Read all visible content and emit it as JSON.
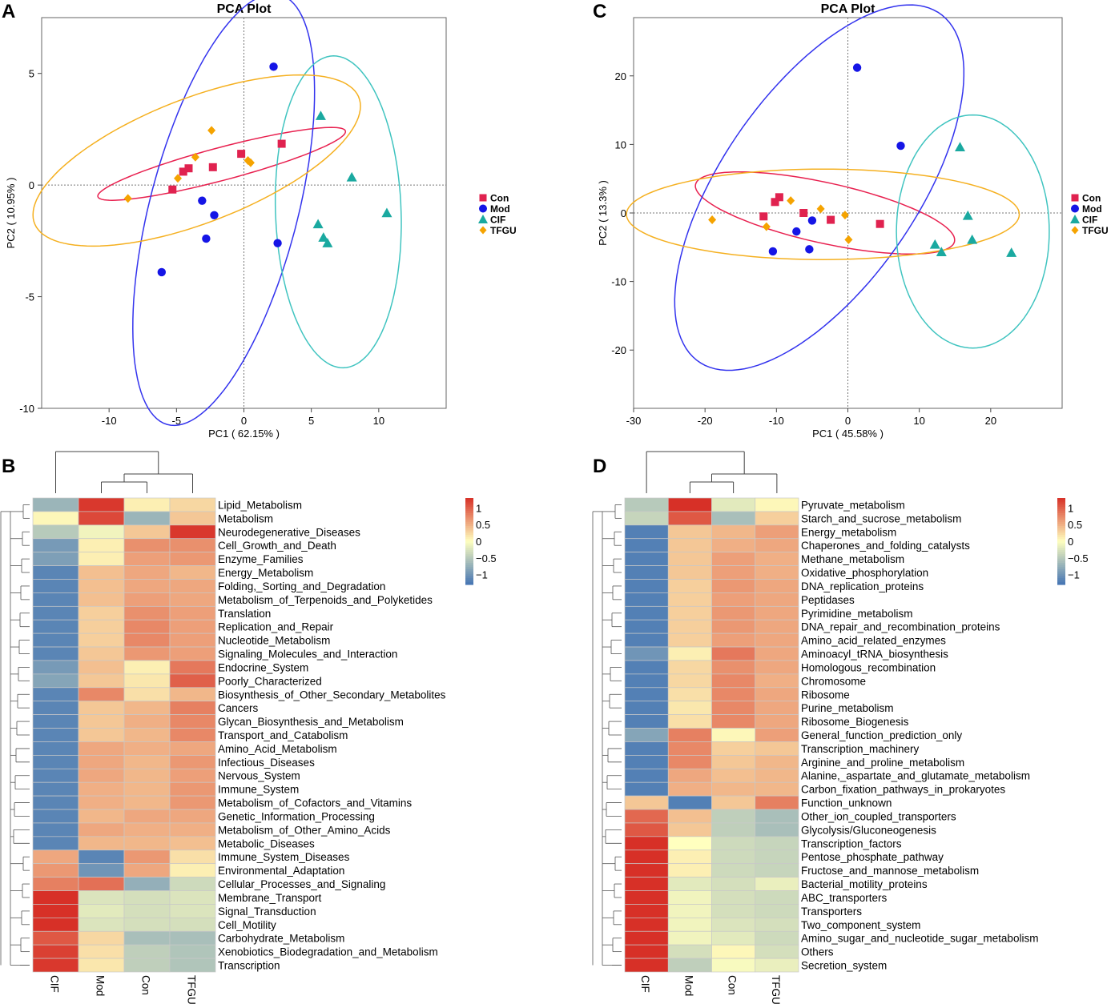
{
  "colors": {
    "Con": "#e0224f",
    "Mod": "#1515e6",
    "CIF": "#1aa9a0",
    "TFGU": "#f5a300",
    "ellipse_Con": "#e8204f",
    "ellipse_Mod": "#3333ee",
    "ellipse_CIF": "#40c4c0",
    "ellipse_TFGU": "#f5b020",
    "heat_low": "#4575b4",
    "heat_mid": "#ffffbf",
    "heat_high": "#d73027"
  },
  "legend_groups": [
    "Con",
    "Mod",
    "CIF",
    "TFGU"
  ],
  "chart_data": [
    {
      "panel": "A",
      "type": "scatter",
      "title": "PCA Plot",
      "xlabel": "PC1 ( 62.15% )",
      "ylabel": "PC2 ( 10.95% )",
      "xlim": [
        -15,
        15
      ],
      "ylim": [
        -10,
        7.5
      ],
      "xticks": [
        -10,
        -5,
        0,
        5,
        10
      ],
      "yticks": [
        -10,
        -5,
        0,
        5
      ],
      "legend_position": "right",
      "series": [
        {
          "name": "Con",
          "marker": "square",
          "points": [
            [
              -5.3,
              -0.2
            ],
            [
              -4.5,
              0.6
            ],
            [
              -4.1,
              0.75
            ],
            [
              -2.3,
              0.8
            ],
            [
              -0.2,
              1.4
            ],
            [
              2.8,
              1.85
            ]
          ]
        },
        {
          "name": "Mod",
          "marker": "circle",
          "points": [
            [
              2.2,
              5.3
            ],
            [
              -3.1,
              -0.7
            ],
            [
              -2.2,
              -1.35
            ],
            [
              -2.8,
              -2.4
            ],
            [
              2.5,
              -2.6
            ],
            [
              -6.1,
              -3.9
            ]
          ]
        },
        {
          "name": "CIF",
          "marker": "triangle",
          "points": [
            [
              5.7,
              3.1
            ],
            [
              8.0,
              0.35
            ],
            [
              10.6,
              -1.25
            ],
            [
              5.5,
              -1.75
            ],
            [
              5.9,
              -2.35
            ],
            [
              6.2,
              -2.6
            ]
          ]
        },
        {
          "name": "TFGU",
          "marker": "diamond",
          "points": [
            [
              -2.4,
              2.45
            ],
            [
              -3.6,
              1.25
            ],
            [
              -4.9,
              0.3
            ],
            [
              -8.6,
              -0.6
            ],
            [
              0.3,
              1.1
            ],
            [
              0.5,
              1.0
            ]
          ]
        }
      ],
      "ellipses": [
        {
          "group": "Con",
          "cx": -1.65,
          "cy": 0.95,
          "rx": 9.3,
          "ry": 0.75,
          "angle": 9.0
        },
        {
          "group": "Mod",
          "cx": -1.5,
          "cy": -1.1,
          "rx": 10.6,
          "ry": 5.15,
          "angle": 62.0
        },
        {
          "group": "CIF",
          "cx": 7.0,
          "cy": -1.2,
          "rx": 7.0,
          "ry": 4.65,
          "angle": 95.0
        },
        {
          "group": "TFGU",
          "cx": -3.5,
          "cy": 1.1,
          "rx": 12.4,
          "ry": 2.9,
          "angle": 12.0
        }
      ]
    },
    {
      "panel": "C",
      "type": "scatter",
      "title": "PCA Plot",
      "xlabel": "PC1 ( 45.58% )",
      "ylabel": "PC2 ( 13.3% )",
      "xlim": [
        -30,
        30
      ],
      "ylim": [
        -28.5,
        28.5
      ],
      "xticks": [
        -30,
        -20,
        -10,
        0,
        10,
        20
      ],
      "yticks": [
        -20,
        -10,
        0,
        10,
        20
      ],
      "legend_position": "right",
      "series": [
        {
          "name": "Con",
          "marker": "square",
          "points": [
            [
              -9.6,
              2.3
            ],
            [
              -10.2,
              1.6
            ],
            [
              -11.8,
              -0.5
            ],
            [
              -6.2,
              0.0
            ],
            [
              -2.4,
              -1.0
            ],
            [
              4.5,
              -1.6
            ]
          ]
        },
        {
          "name": "Mod",
          "marker": "circle",
          "points": [
            [
              1.3,
              21.2
            ],
            [
              7.4,
              9.8
            ],
            [
              -5.0,
              -1.1
            ],
            [
              -7.2,
              -2.7
            ],
            [
              -5.4,
              -5.3
            ],
            [
              -10.5,
              -5.6
            ]
          ]
        },
        {
          "name": "CIF",
          "marker": "triangle",
          "points": [
            [
              15.7,
              9.6
            ],
            [
              16.8,
              -0.4
            ],
            [
              22.9,
              -5.8
            ],
            [
              12.2,
              -4.6
            ],
            [
              13.1,
              -5.7
            ],
            [
              17.4,
              -3.9
            ]
          ]
        },
        {
          "name": "TFGU",
          "marker": "diamond",
          "points": [
            [
              -8.0,
              1.8
            ],
            [
              -3.8,
              0.6
            ],
            [
              -0.4,
              -0.3
            ],
            [
              -19.0,
              -1.0
            ],
            [
              -11.4,
              -2.0
            ],
            [
              0.1,
              -3.9
            ]
          ]
        }
      ],
      "ellipses": [
        {
          "group": "Con",
          "cx": -3.2,
          "cy": 0.0,
          "rx": 18.6,
          "ry": 4.4,
          "angle": -13.0
        },
        {
          "group": "Mod",
          "cx": -4.0,
          "cy": 3.7,
          "rx": 30.5,
          "ry": 13.8,
          "angle": 57.0
        },
        {
          "group": "CIF",
          "cx": 17.5,
          "cy": -2.7,
          "rx": 17.0,
          "ry": 10.7,
          "angle": 90.0
        },
        {
          "group": "TFGU",
          "cx": -3.5,
          "cy": -0.2,
          "rx": 27.5,
          "ry": 6.6,
          "angle": 0.0
        }
      ]
    },
    {
      "panel": "B",
      "type": "heatmap",
      "columns": [
        "CIF",
        "Mod",
        "Con",
        "TFGU"
      ],
      "colorbar": {
        "min": -1.3,
        "max": 1.3,
        "ticks": [
          1,
          0.5,
          0,
          -0.5,
          -1
        ],
        "tick_labels": [
          "1",
          "0.5",
          "0",
          "−0.5",
          "−1"
        ]
      },
      "rows": [
        {
          "label": "Lipid_Metabolism",
          "values": [
            -0.7,
            1.25,
            0.1,
            0.25
          ]
        },
        {
          "label": "Metabolism",
          "values": [
            0.05,
            1.15,
            -0.7,
            0.35
          ]
        },
        {
          "label": "Neurodegenerative_Diseases",
          "values": [
            -0.5,
            -0.1,
            0.35,
            1.25
          ]
        },
        {
          "label": "Cell_Growth_and_Death",
          "values": [
            -0.95,
            0.1,
            0.7,
            0.7
          ]
        },
        {
          "label": "Enzyme_Families",
          "values": [
            -0.9,
            0.1,
            0.6,
            0.65
          ]
        },
        {
          "label": "Energy_Metabolism",
          "values": [
            -1.15,
            0.4,
            0.55,
            0.45
          ]
        },
        {
          "label": "Folding,_Sorting_and_Degradation",
          "values": [
            -1.15,
            0.4,
            0.55,
            0.55
          ]
        },
        {
          "label": "Metabolism_of_Terpenoids_and_Polyketides",
          "values": [
            -1.15,
            0.4,
            0.6,
            0.55
          ]
        },
        {
          "label": "Translation",
          "values": [
            -1.15,
            0.3,
            0.7,
            0.6
          ]
        },
        {
          "label": "Replication_and_Repair",
          "values": [
            -1.15,
            0.3,
            0.75,
            0.6
          ]
        },
        {
          "label": "Nucleotide_Metabolism",
          "values": [
            -1.15,
            0.3,
            0.75,
            0.6
          ]
        },
        {
          "label": "Signaling_Molecules_and_Interaction",
          "values": [
            -1.15,
            0.35,
            0.65,
            0.6
          ]
        },
        {
          "label": "Endocrine_System",
          "values": [
            -0.95,
            0.4,
            0.1,
            0.85
          ]
        },
        {
          "label": "Poorly_Characterized",
          "values": [
            -0.85,
            0.35,
            0.15,
            1.0
          ]
        },
        {
          "label": "Biosynthesis_of_Other_Secondary_Metabolites",
          "values": [
            -1.15,
            0.75,
            0.2,
            0.45
          ]
        },
        {
          "label": "Cancers",
          "values": [
            -1.15,
            0.35,
            0.45,
            0.8
          ]
        },
        {
          "label": "Glycan_Biosynthesis_and_Metabolism",
          "values": [
            -1.15,
            0.35,
            0.5,
            0.75
          ]
        },
        {
          "label": "Transport_and_Catabolism",
          "values": [
            -1.15,
            0.35,
            0.45,
            0.75
          ]
        },
        {
          "label": "Amino_Acid_Metabolism",
          "values": [
            -1.15,
            0.55,
            0.5,
            0.55
          ]
        },
        {
          "label": "Infectious_Diseases",
          "values": [
            -1.15,
            0.55,
            0.45,
            0.65
          ]
        },
        {
          "label": "Nervous_System",
          "values": [
            -1.15,
            0.55,
            0.45,
            0.6
          ]
        },
        {
          "label": "Immune_System",
          "values": [
            -1.15,
            0.5,
            0.45,
            0.65
          ]
        },
        {
          "label": "Metabolism_of_Cofactors_and_Vitamins",
          "values": [
            -1.15,
            0.5,
            0.45,
            0.65
          ]
        },
        {
          "label": "Genetic_Information_Processing",
          "values": [
            -1.15,
            0.45,
            0.55,
            0.55
          ]
        },
        {
          "label": "Metabolism_of_Other_Amino_Acids",
          "values": [
            -1.15,
            0.55,
            0.5,
            0.5
          ]
        },
        {
          "label": "Metabolic_Diseases",
          "values": [
            -1.15,
            0.45,
            0.45,
            0.4
          ]
        },
        {
          "label": "Immune_System_Diseases",
          "values": [
            0.55,
            -1.15,
            0.65,
            0.2
          ]
        },
        {
          "label": "Environmental_Adaptation",
          "values": [
            0.65,
            -1.0,
            0.55,
            0.1
          ]
        },
        {
          "label": "Cellular_Processes_and_Signaling",
          "values": [
            0.8,
            0.9,
            -0.75,
            -0.35
          ]
        },
        {
          "label": "Membrane_Transport",
          "values": [
            1.3,
            -0.25,
            -0.3,
            -0.25
          ]
        },
        {
          "label": "Signal_Transduction",
          "values": [
            1.3,
            -0.2,
            -0.3,
            -0.25
          ]
        },
        {
          "label": "Cell_Motility",
          "values": [
            1.3,
            -0.25,
            -0.3,
            -0.3
          ]
        },
        {
          "label": "Carbohydrate_Metabolism",
          "values": [
            1.05,
            0.25,
            -0.6,
            -0.6
          ]
        },
        {
          "label": "Xenobiotics_Biodegradation_and_Metabolism",
          "values": [
            1.2,
            0.2,
            -0.45,
            -0.55
          ]
        },
        {
          "label": "Transcription",
          "values": [
            1.25,
            0.15,
            -0.45,
            -0.55
          ]
        }
      ]
    },
    {
      "panel": "D",
      "type": "heatmap",
      "columns": [
        "CIF",
        "Mod",
        "Con",
        "TFGU"
      ],
      "colorbar": {
        "min": -1.3,
        "max": 1.3,
        "ticks": [
          1,
          0.5,
          0,
          -0.5,
          -1
        ],
        "tick_labels": [
          "1",
          "0.5",
          "0",
          "−0.5",
          "−1"
        ]
      },
      "rows": [
        {
          "label": "Pyruvate_metabolism",
          "values": [
            -0.5,
            1.3,
            -0.2,
            0.05
          ]
        },
        {
          "label": "Starch_and_sucrose_metabolism",
          "values": [
            -0.4,
            1.05,
            -0.6,
            0.3
          ]
        },
        {
          "label": "Energy_metabolism",
          "values": [
            -1.2,
            0.35,
            0.45,
            0.6
          ]
        },
        {
          "label": "Chaperones_and_folding_catalysts",
          "values": [
            -1.2,
            0.35,
            0.5,
            0.55
          ]
        },
        {
          "label": "Methane_metabolism",
          "values": [
            -1.2,
            0.35,
            0.6,
            0.5
          ]
        },
        {
          "label": "Oxidative_phosphorylation",
          "values": [
            -1.2,
            0.35,
            0.6,
            0.5
          ]
        },
        {
          "label": "DNA_replication_proteins",
          "values": [
            -1.2,
            0.3,
            0.65,
            0.55
          ]
        },
        {
          "label": "Peptidases",
          "values": [
            -1.2,
            0.3,
            0.6,
            0.55
          ]
        },
        {
          "label": "Pyrimidine_metabolism",
          "values": [
            -1.2,
            0.3,
            0.65,
            0.55
          ]
        },
        {
          "label": "DNA_repair_and_recombination_proteins",
          "values": [
            -1.2,
            0.3,
            0.65,
            0.55
          ]
        },
        {
          "label": "Amino_acid_related_enzymes",
          "values": [
            -1.2,
            0.3,
            0.6,
            0.55
          ]
        },
        {
          "label": "Aminoacyl_tRNA_biosynthesis",
          "values": [
            -1.0,
            0.1,
            0.85,
            0.55
          ]
        },
        {
          "label": "Homologous_recombination",
          "values": [
            -1.2,
            0.25,
            0.7,
            0.55
          ]
        },
        {
          "label": "Chromosome",
          "values": [
            -1.2,
            0.25,
            0.75,
            0.5
          ]
        },
        {
          "label": "Ribosome",
          "values": [
            -1.2,
            0.2,
            0.75,
            0.55
          ]
        },
        {
          "label": "Purine_metabolism",
          "values": [
            -1.2,
            0.15,
            0.75,
            0.55
          ]
        },
        {
          "label": "Ribosome_Biogenesis",
          "values": [
            -1.2,
            0.2,
            0.75,
            0.55
          ]
        },
        {
          "label": "General_function_prediction_only",
          "values": [
            -0.85,
            0.8,
            0.05,
            0.6
          ]
        },
        {
          "label": "Transcription_machinery",
          "values": [
            -1.2,
            0.75,
            0.3,
            0.35
          ]
        },
        {
          "label": "Arginine_and_proline_metabolism",
          "values": [
            -1.2,
            0.75,
            0.35,
            0.45
          ]
        },
        {
          "label": "Alanine,_aspartate_and_glutamate_metabolism",
          "values": [
            -1.2,
            0.55,
            0.4,
            0.45
          ]
        },
        {
          "label": "Carbon_fixation_pathways_in_prokaryotes",
          "values": [
            -1.2,
            0.5,
            0.45,
            0.45
          ]
        },
        {
          "label": "Function_unknown",
          "values": [
            0.35,
            -1.2,
            0.35,
            0.8
          ]
        },
        {
          "label": "Other_ion_coupled_transporters",
          "values": [
            0.95,
            0.4,
            -0.45,
            -0.6
          ]
        },
        {
          "label": "Glycolysis/Gluconeogenesis",
          "values": [
            1.05,
            0.35,
            -0.45,
            -0.6
          ]
        },
        {
          "label": "Transcription_factors",
          "values": [
            1.3,
            0.0,
            -0.35,
            -0.4
          ]
        },
        {
          "label": "Pentose_phosphate_pathway",
          "values": [
            1.3,
            0.1,
            -0.35,
            -0.4
          ]
        },
        {
          "label": "Fructose_and_mannose_metabolism",
          "values": [
            1.3,
            0.1,
            -0.35,
            -0.4
          ]
        },
        {
          "label": "Bacterial_motility_proteins",
          "values": [
            1.3,
            -0.2,
            -0.3,
            -0.15
          ]
        },
        {
          "label": "ABC_transporters",
          "values": [
            1.3,
            -0.1,
            -0.3,
            -0.35
          ]
        },
        {
          "label": "Transporters",
          "values": [
            1.3,
            -0.1,
            -0.3,
            -0.35
          ]
        },
        {
          "label": "Two_component_system",
          "values": [
            1.3,
            -0.1,
            -0.25,
            -0.3
          ]
        },
        {
          "label": "Amino_sugar_and_nucleotide_sugar_metabolism",
          "values": [
            1.3,
            -0.1,
            -0.2,
            -0.35
          ]
        },
        {
          "label": "Others",
          "values": [
            1.3,
            -0.3,
            0.05,
            -0.3
          ]
        },
        {
          "label": "Secretion_system",
          "values": [
            1.3,
            -0.45,
            -0.05,
            -0.15
          ]
        }
      ]
    }
  ]
}
